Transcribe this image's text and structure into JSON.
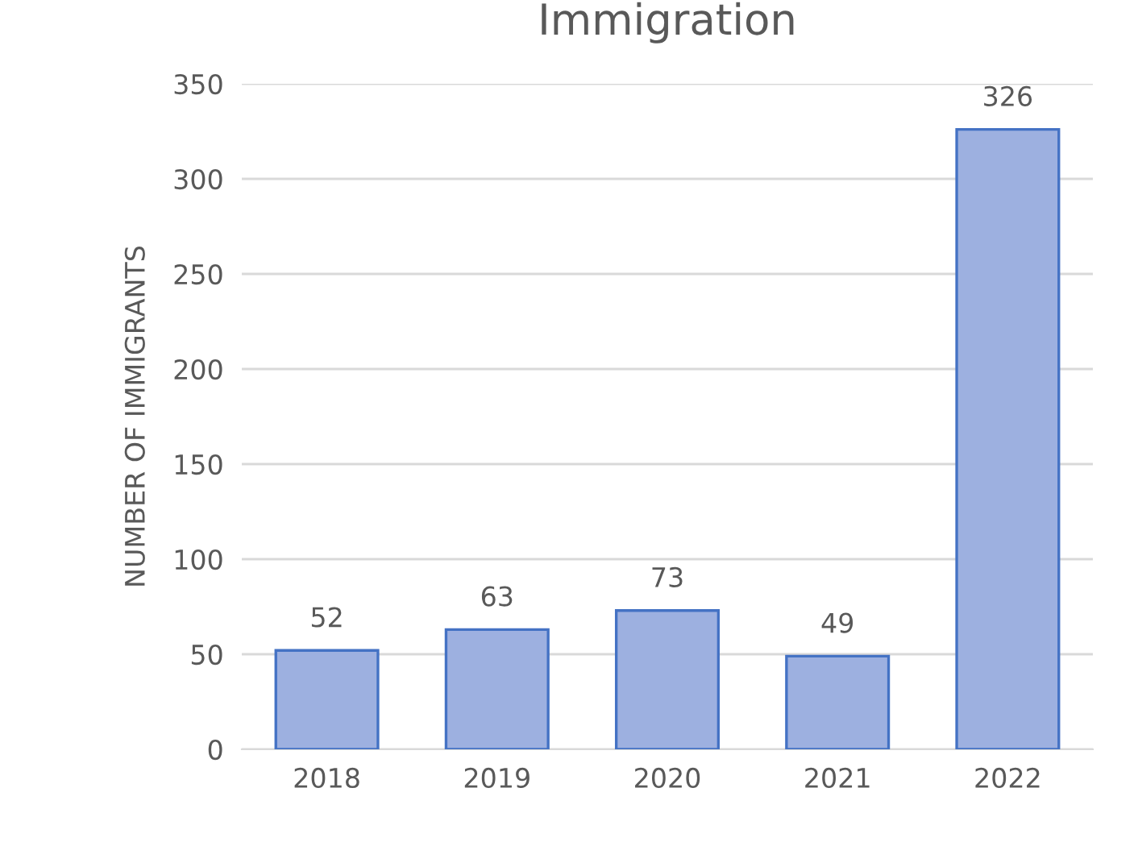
{
  "chart_data": {
    "type": "bar",
    "title": "Immigration",
    "ylabel": "NUMBER OF IMMIGRANTS",
    "categories": [
      "2018",
      "2019",
      "2020",
      "2021",
      "2022"
    ],
    "values": [
      52,
      63,
      73,
      49,
      326
    ],
    "color": "#9db0e0",
    "ylim": [
      0,
      350
    ],
    "yticks": [
      0,
      50,
      100,
      150,
      200,
      250,
      300,
      350
    ],
    "grid": "y",
    "data_labels": true
  }
}
